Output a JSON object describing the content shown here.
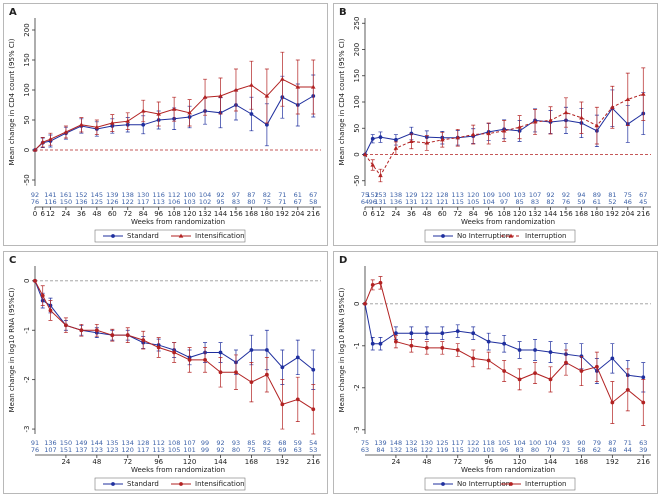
{
  "chart_data": [
    {
      "type": "line",
      "label": "A",
      "ylabel": "Mean change in CD4 count (95% CI)",
      "xlabel": "Weeks from randomization",
      "x": [
        0,
        6,
        12,
        24,
        36,
        48,
        60,
        72,
        84,
        96,
        108,
        120,
        132,
        144,
        156,
        168,
        180,
        192,
        204,
        216
      ],
      "xlim": [
        0,
        222
      ],
      "xticks": [
        0,
        6,
        12,
        24,
        36,
        48,
        60,
        72,
        84,
        96,
        108,
        120,
        132,
        144,
        156,
        168,
        180,
        192,
        204,
        216
      ],
      "ylim": [
        -60,
        220
      ],
      "yticks": [
        -50,
        0,
        50,
        100,
        150,
        200
      ],
      "hline": 0,
      "hline_color": "#b22222",
      "series": [
        {
          "name": "Standard",
          "color": "#1f2f9e",
          "marker": "circle",
          "dash": false,
          "values": [
            0,
            12,
            15,
            28,
            40,
            35,
            40,
            42,
            42,
            50,
            52,
            55,
            65,
            62,
            75,
            60,
            42,
            88,
            75,
            90
          ],
          "errors": [
            0,
            8,
            10,
            10,
            12,
            12,
            12,
            12,
            15,
            15,
            18,
            18,
            22,
            25,
            25,
            28,
            35,
            35,
            35,
            35
          ]
        },
        {
          "name": "Intensification",
          "color": "#b22222",
          "marker": "triangle",
          "dash": false,
          "values": [
            0,
            13,
            18,
            30,
            42,
            38,
            45,
            48,
            65,
            60,
            68,
            62,
            88,
            90,
            100,
            108,
            90,
            118,
            105,
            105
          ],
          "errors": [
            0,
            8,
            10,
            10,
            12,
            12,
            14,
            14,
            18,
            20,
            20,
            22,
            30,
            30,
            35,
            40,
            45,
            45,
            45,
            45
          ]
        }
      ],
      "at_risk": [
        [
          92,
          141,
          161,
          152,
          145,
          139,
          138,
          130,
          116,
          112,
          100,
          104,
          92,
          97,
          87,
          82,
          71,
          61,
          67
        ],
        [
          76,
          116,
          150,
          136,
          125,
          126,
          122,
          117,
          113,
          106,
          103,
          102,
          95,
          83,
          80,
          75,
          71,
          67,
          58
        ]
      ]
    },
    {
      "type": "line",
      "label": "B",
      "ylabel": "Mean change in CD4 count (95% CI)",
      "xlabel": "Weeks from randomization",
      "x": [
        0,
        6,
        12,
        24,
        36,
        48,
        60,
        72,
        84,
        96,
        108,
        120,
        132,
        144,
        156,
        168,
        180,
        192,
        204,
        216
      ],
      "xlim": [
        0,
        222
      ],
      "xticks": [
        0,
        6,
        12,
        24,
        36,
        48,
        60,
        72,
        84,
        96,
        108,
        120,
        132,
        144,
        156,
        168,
        180,
        192,
        204,
        216
      ],
      "ylim": [
        -60,
        260
      ],
      "yticks": [
        -50,
        0,
        50,
        100,
        150,
        200,
        250
      ],
      "hline": 0,
      "hline_color": "#b22222",
      "series": [
        {
          "name": "No Interruption",
          "color": "#1f2f9e",
          "marker": "circle",
          "dash": false,
          "values": [
            0,
            30,
            33,
            28,
            40,
            33,
            32,
            32,
            35,
            43,
            48,
            45,
            65,
            62,
            65,
            60,
            45,
            88,
            58,
            78
          ],
          "errors": [
            0,
            8,
            10,
            10,
            12,
            12,
            12,
            14,
            14,
            16,
            18,
            20,
            22,
            22,
            25,
            28,
            30,
            35,
            35,
            40
          ]
        },
        {
          "name": "Interruption",
          "color": "#b22222",
          "marker": "triangle",
          "dash": true,
          "values": [
            0,
            -20,
            -40,
            12,
            25,
            22,
            28,
            32,
            38,
            40,
            45,
            52,
            62,
            65,
            80,
            70,
            55,
            90,
            105,
            115
          ],
          "errors": [
            0,
            10,
            12,
            12,
            14,
            14,
            14,
            16,
            18,
            20,
            20,
            22,
            24,
            26,
            28,
            30,
            35,
            40,
            50,
            50
          ]
        }
      ],
      "at_risk": [
        [
          75,
          152,
          153,
          138,
          129,
          122,
          128,
          113,
          120,
          109,
          100,
          103,
          107,
          92,
          92,
          94,
          89,
          81,
          75,
          67
        ],
        [
          64,
          96,
          131,
          136,
          131,
          121,
          121,
          115,
          105,
          104,
          97,
          85,
          83,
          82,
          76,
          59,
          61,
          52,
          46,
          45
        ]
      ]
    },
    {
      "type": "line",
      "label": "C",
      "ylabel": "Mean change in log10 RNA (95%CI)",
      "xlabel": "Weeks from randomization",
      "x": [
        0,
        6,
        12,
        24,
        36,
        48,
        60,
        72,
        84,
        96,
        108,
        120,
        132,
        144,
        156,
        168,
        180,
        192,
        204,
        216
      ],
      "xlim": [
        0,
        222
      ],
      "xticks": [
        24,
        48,
        72,
        96,
        120,
        144,
        168,
        192,
        216
      ],
      "ylim": [
        -3.1,
        0.3
      ],
      "yticks": [
        -3,
        -2,
        -1,
        0
      ],
      "hline": 0,
      "hline_color": "#999999",
      "series": [
        {
          "name": "Standard",
          "color": "#1f2f9e",
          "marker": "circle",
          "dash": false,
          "values": [
            0,
            -0.4,
            -0.5,
            -0.9,
            -1.0,
            -1.05,
            -1.1,
            -1.1,
            -1.25,
            -1.3,
            -1.4,
            -1.55,
            -1.45,
            -1.45,
            -1.65,
            -1.4,
            -1.4,
            -1.75,
            -1.55,
            -1.8
          ],
          "errors": [
            0,
            0.15,
            0.15,
            0.1,
            0.1,
            0.1,
            0.1,
            0.1,
            0.12,
            0.12,
            0.15,
            0.15,
            0.2,
            0.2,
            0.25,
            0.3,
            0.4,
            0.35,
            0.35,
            0.4
          ]
        },
        {
          "name": "Intensification",
          "color": "#b22222",
          "marker": "circle",
          "dash": false,
          "values": [
            0,
            -0.3,
            -0.6,
            -0.9,
            -1.0,
            -1.0,
            -1.1,
            -1.1,
            -1.2,
            -1.35,
            -1.45,
            -1.6,
            -1.6,
            -1.85,
            -1.85,
            -2.05,
            -1.9,
            -2.5,
            -2.4,
            -2.6
          ],
          "errors": [
            0,
            0.2,
            0.2,
            0.15,
            0.12,
            0.12,
            0.12,
            0.15,
            0.18,
            0.2,
            0.2,
            0.25,
            0.25,
            0.3,
            0.35,
            0.4,
            0.35,
            0.5,
            0.45,
            0.5
          ]
        }
      ],
      "at_risk": [
        [
          91,
          136,
          150,
          149,
          144,
          135,
          134,
          128,
          112,
          108,
          107,
          99,
          92,
          93,
          85,
          82,
          68,
          59,
          54
        ],
        [
          76,
          107,
          151,
          137,
          123,
          123,
          120,
          117,
          113,
          105,
          101,
          99,
          92,
          80,
          75,
          75,
          69,
          63,
          53
        ]
      ]
    },
    {
      "type": "line",
      "label": "D",
      "ylabel": "Mean change in log10 RNA (95%CI)",
      "xlabel": "Weeks from randomization",
      "x": [
        0,
        6,
        12,
        24,
        36,
        48,
        60,
        72,
        84,
        96,
        108,
        120,
        132,
        144,
        156,
        168,
        180,
        192,
        204,
        216
      ],
      "xlim": [
        0,
        222
      ],
      "xticks": [
        24,
        48,
        72,
        96,
        120,
        144,
        168,
        192,
        216
      ],
      "ylim": [
        -3.1,
        0.9
      ],
      "yticks": [
        -3,
        -2,
        -1,
        0
      ],
      "hline": 0,
      "hline_color": "#999999",
      "series": [
        {
          "name": "No Interruption",
          "color": "#1f2f9e",
          "marker": "circle",
          "dash": false,
          "values": [
            0,
            -0.95,
            -0.95,
            -0.7,
            -0.7,
            -0.7,
            -0.7,
            -0.65,
            -0.7,
            -0.9,
            -0.95,
            -1.1,
            -1.1,
            -1.15,
            -1.2,
            -1.25,
            -1.6,
            -1.3,
            -1.7,
            -1.75
          ],
          "errors": [
            0,
            0.15,
            0.15,
            0.15,
            0.15,
            0.15,
            0.15,
            0.15,
            0.15,
            0.2,
            0.2,
            0.2,
            0.25,
            0.25,
            0.25,
            0.3,
            0.3,
            0.35,
            0.35,
            0.35
          ]
        },
        {
          "name": "Interruption",
          "color": "#b22222",
          "marker": "circle",
          "dash": false,
          "values": [
            0,
            0.45,
            0.5,
            -0.9,
            -1.0,
            -1.05,
            -1.05,
            -1.1,
            -1.3,
            -1.35,
            -1.6,
            -1.8,
            -1.65,
            -1.8,
            -1.4,
            -1.6,
            -1.5,
            -2.35,
            -2.05,
            -2.35
          ],
          "errors": [
            0,
            0.12,
            0.15,
            0.15,
            0.15,
            0.15,
            0.15,
            0.15,
            0.2,
            0.2,
            0.25,
            0.25,
            0.25,
            0.3,
            0.3,
            0.35,
            0.35,
            0.5,
            0.5,
            0.55
          ]
        }
      ],
      "at_risk": [
        [
          75,
          139,
          148,
          132,
          130,
          125,
          117,
          122,
          118,
          105,
          104,
          100,
          104,
          93,
          90,
          79,
          87,
          71,
          63
        ],
        [
          63,
          84,
          132,
          136,
          122,
          119,
          115,
          120,
          101,
          96,
          83,
          80,
          79,
          71,
          58,
          62,
          48,
          44,
          39
        ]
      ]
    }
  ]
}
